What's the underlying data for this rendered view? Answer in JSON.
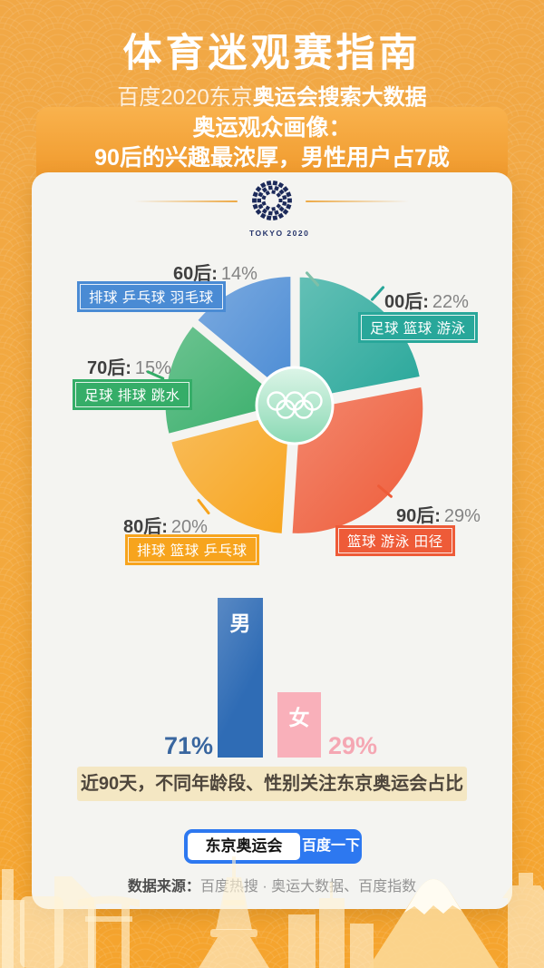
{
  "header": {
    "title": "体育迷观赛指南",
    "subtitle_light": "百度2020东京",
    "subtitle_bold": "奥运会搜索大数据"
  },
  "banner": {
    "line1": "奥运观众画像：",
    "line2": "90后的兴趣最浓厚，男性用户占7成"
  },
  "logo": {
    "text": "TOKYO 2020"
  },
  "chart_data": [
    {
      "type": "pie",
      "title": "近90天不同年龄段关注东京奥运会占比",
      "unit": "%",
      "start_angle_deg": -90,
      "clockwise": true,
      "slices": [
        {
          "label": "00后",
          "display": "00后:",
          "value": 22,
          "pct": "22%",
          "interests": "足球 篮球 游泳",
          "color": "#28a79a"
        },
        {
          "label": "90后",
          "display": "90后:",
          "value": 29,
          "pct": "29%",
          "interests": "篮球 游泳 田径",
          "color": "#ee5b38"
        },
        {
          "label": "80后",
          "display": "80后:",
          "value": 20,
          "pct": "20%",
          "interests": "排球 篮球 乒乓球",
          "color": "#f7a41d"
        },
        {
          "label": "70后",
          "display": "70后:",
          "value": 15,
          "pct": "15%",
          "interests": "足球 排球 跳水",
          "color": "#35ad68"
        },
        {
          "label": "60后",
          "display": "60后:",
          "value": 14,
          "pct": "14%",
          "interests": "排球 乒乓球 羽毛球",
          "color": "#4a8bd4"
        }
      ]
    },
    {
      "type": "bar",
      "title": "近90天不同性别关注东京奥运会占比",
      "categories": [
        "男",
        "女"
      ],
      "values": [
        71,
        29
      ],
      "value_labels": [
        "71%",
        "29%"
      ],
      "colors": [
        "#2f6cb5",
        "#f9b0ba"
      ],
      "ylim": [
        0,
        71
      ]
    }
  ],
  "caption": "近90天，不同年龄段、性别关注东京奥运会占比",
  "search": {
    "query": "东京奥运会",
    "button": "百度一下"
  },
  "footer": {
    "label": "数据来源：",
    "sources": "百度热搜 · 奥运大数据、百度指数"
  },
  "theme": {
    "background_orange": "#f3a93e",
    "banner_orange": "#ef9729",
    "card_bg": "#f4f4f1",
    "baidu_blue": "#2d78f0",
    "emblem_navy": "#1c2a5a",
    "caption_bg": "#f4e7c3",
    "mint_center": "#8ad9b4"
  }
}
